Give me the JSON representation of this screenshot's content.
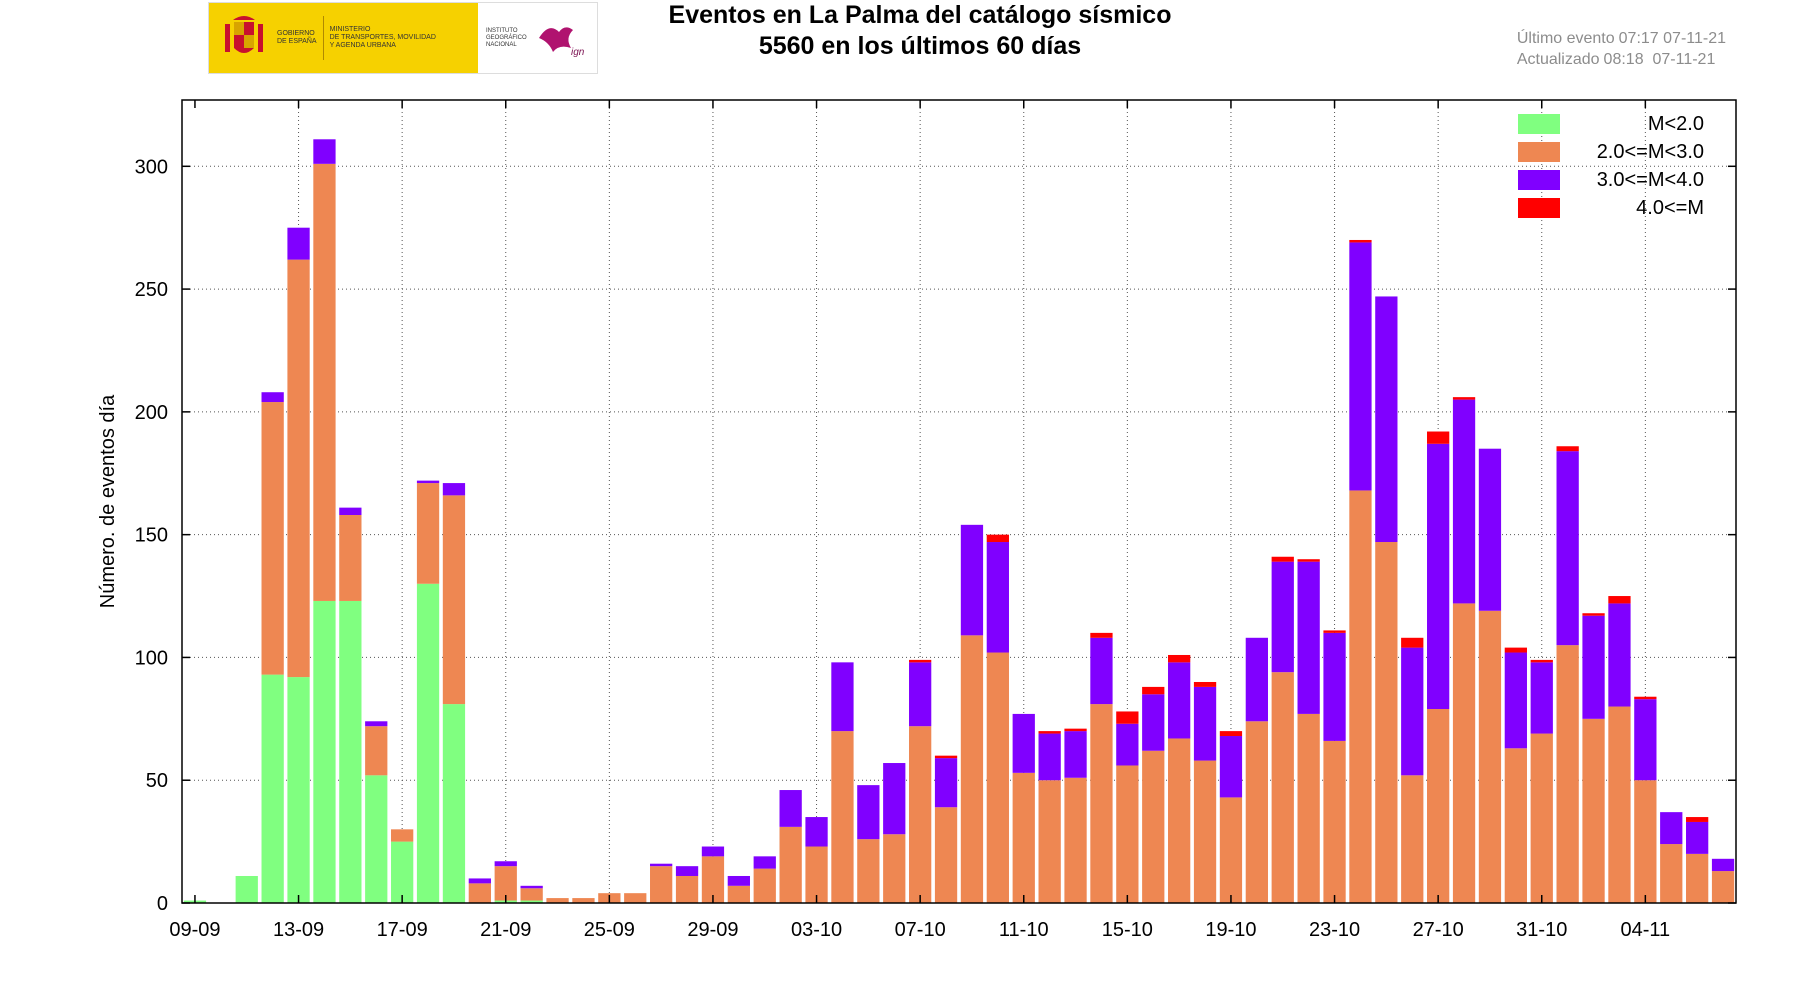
{
  "header": {
    "logo": {
      "gov_text": "GOBIERNO\nDE ESPAÑA",
      "ministry_text": "MINISTERIO\nDE TRANSPORTES, MOVILIDAD\nY AGENDA URBANA",
      "institute_text": "INSTITUTO\nGEOGRÁFICO\nNACIONAL",
      "ign_text": "ign"
    },
    "title": "Eventos en La Palma del catálogo sísmico",
    "subtitle": "5560 en los últimos 60 días",
    "last_event_label": "Último evento",
    "last_event_value": "07:17 07-11-21",
    "updated_label": "Actualizado",
    "updated_value": "08:18  07-11-21"
  },
  "colors": {
    "m_lt2": "#80ff80",
    "m_2_3": "#ee8752",
    "m_3_4": "#8000ff",
    "m_ge4": "#ff0000"
  },
  "chart_data": {
    "type": "bar",
    "stacked": true,
    "ylabel": "Número. de eventos día",
    "ylim": [
      0,
      327
    ],
    "yticks": [
      0,
      50,
      100,
      150,
      200,
      250,
      300
    ],
    "grid": true,
    "legend_position": "top-right",
    "x_tick_labels": [
      {
        "label": "09-09",
        "day": 0
      },
      {
        "label": "13-09",
        "day": 4
      },
      {
        "label": "17-09",
        "day": 8
      },
      {
        "label": "21-09",
        "day": 12
      },
      {
        "label": "25-09",
        "day": 16
      },
      {
        "label": "29-09",
        "day": 20
      },
      {
        "label": "03-10",
        "day": 24
      },
      {
        "label": "07-10",
        "day": 28
      },
      {
        "label": "11-10",
        "day": 32
      },
      {
        "label": "15-10",
        "day": 36
      },
      {
        "label": "19-10",
        "day": 40
      },
      {
        "label": "23-10",
        "day": 44
      },
      {
        "label": "27-10",
        "day": 48
      },
      {
        "label": "31-10",
        "day": 52
      },
      {
        "label": "04-11",
        "day": 56
      }
    ],
    "categories": [
      "09-09",
      "10-09",
      "11-09",
      "12-09",
      "13-09",
      "14-09",
      "15-09",
      "16-09",
      "17-09",
      "18-09",
      "19-09",
      "20-09",
      "21-09",
      "22-09",
      "23-09",
      "24-09",
      "25-09",
      "26-09",
      "27-09",
      "28-09",
      "29-09",
      "30-09",
      "01-10",
      "02-10",
      "03-10",
      "04-10",
      "05-10",
      "06-10",
      "07-10",
      "08-10",
      "09-10",
      "10-10",
      "11-10",
      "12-10",
      "13-10",
      "14-10",
      "15-10",
      "16-10",
      "17-10",
      "18-10",
      "19-10",
      "20-10",
      "21-10",
      "22-10",
      "23-10",
      "24-10",
      "25-10",
      "26-10",
      "27-10",
      "28-10",
      "29-10",
      "30-10",
      "31-10",
      "01-11",
      "02-11",
      "03-11",
      "04-11",
      "05-11",
      "06-11",
      "07-11"
    ],
    "series": [
      {
        "name": "M<2.0",
        "color_key": "m_lt2",
        "values": [
          1,
          0,
          11,
          93,
          92,
          123,
          123,
          52,
          25,
          130,
          81,
          0,
          1,
          1,
          0,
          0,
          0,
          0,
          0,
          0,
          0,
          0,
          0,
          0,
          0,
          0,
          0,
          0,
          0,
          0,
          0,
          0,
          0,
          0,
          0,
          0,
          0,
          0,
          0,
          0,
          0,
          0,
          0,
          0,
          0,
          0,
          0,
          0,
          0,
          0,
          0,
          0,
          0,
          0,
          0,
          0,
          0,
          0,
          0,
          0
        ]
      },
      {
        "name": "2.0<=M<3.0",
        "color_key": "m_2_3",
        "values": [
          0,
          0,
          0,
          111,
          170,
          178,
          35,
          20,
          5,
          41,
          85,
          8,
          14,
          5,
          2,
          2,
          4,
          4,
          15,
          11,
          19,
          7,
          14,
          31,
          23,
          70,
          26,
          28,
          72,
          39,
          109,
          102,
          53,
          50,
          51,
          81,
          56,
          62,
          67,
          58,
          43,
          74,
          94,
          77,
          66,
          168,
          147,
          52,
          79,
          122,
          119,
          63,
          69,
          105,
          75,
          80,
          50,
          24,
          20,
          13
        ]
      },
      {
        "name": "3.0<=M<4.0",
        "color_key": "m_3_4",
        "values": [
          0,
          0,
          0,
          4,
          13,
          10,
          3,
          2,
          0,
          1,
          5,
          2,
          2,
          1,
          0,
          0,
          0,
          0,
          1,
          4,
          4,
          4,
          5,
          15,
          12,
          28,
          22,
          29,
          26,
          20,
          45,
          45,
          24,
          19,
          19,
          27,
          17,
          23,
          31,
          30,
          25,
          34,
          45,
          62,
          44,
          101,
          100,
          52,
          108,
          83,
          66,
          39,
          29,
          79,
          42,
          42,
          33,
          13,
          13,
          5
        ]
      },
      {
        "name": "4.0<=M",
        "color_key": "m_ge4",
        "values": [
          0,
          0,
          0,
          0,
          0,
          0,
          0,
          0,
          0,
          0,
          0,
          0,
          0,
          0,
          0,
          0,
          0,
          0,
          0,
          0,
          0,
          0,
          0,
          0,
          0,
          0,
          0,
          0,
          1,
          1,
          0,
          3,
          0,
          1,
          1,
          2,
          5,
          3,
          3,
          2,
          2,
          0,
          2,
          1,
          1,
          1,
          0,
          4,
          5,
          1,
          0,
          2,
          1,
          2,
          1,
          3,
          1,
          0,
          2,
          0
        ]
      }
    ]
  }
}
